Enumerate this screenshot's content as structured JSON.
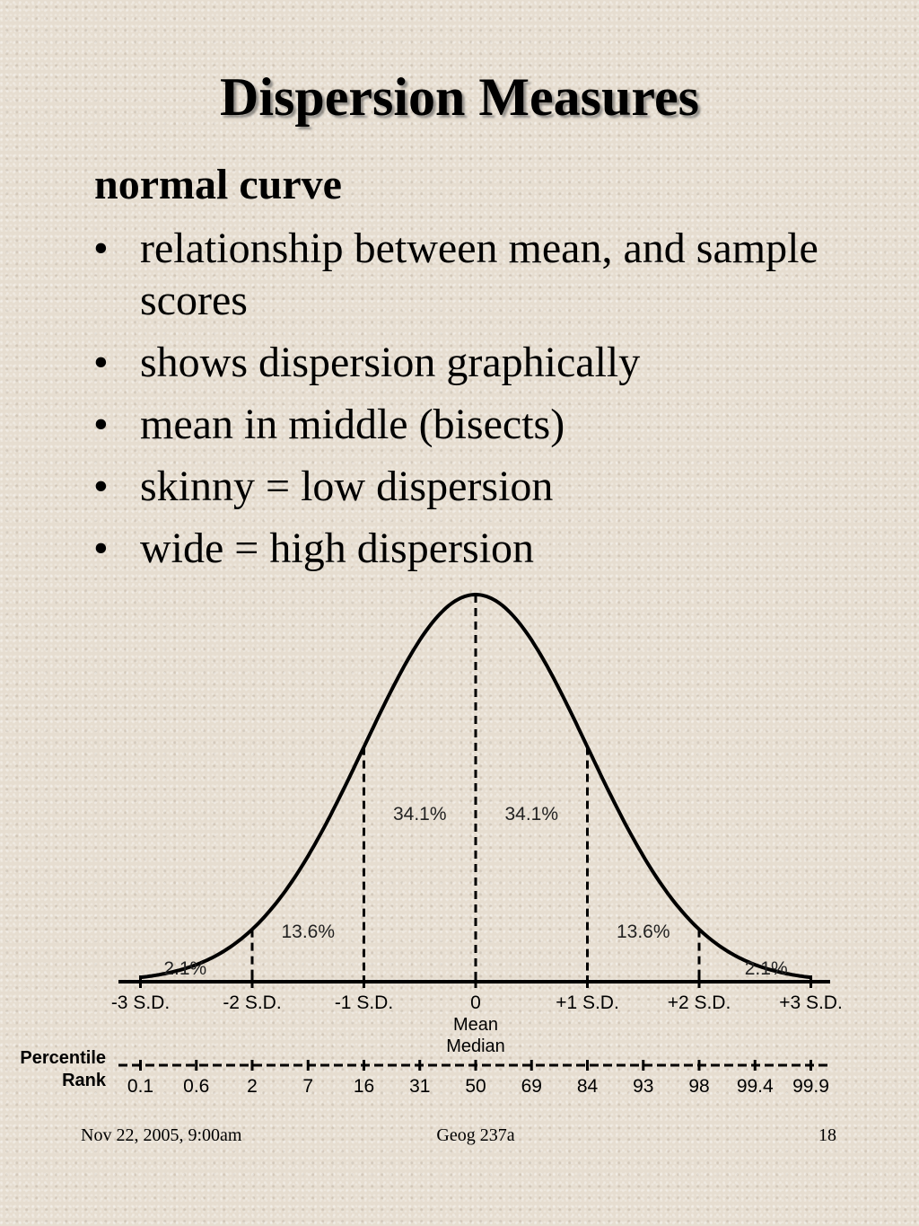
{
  "slide": {
    "title": "Dispersion Measures",
    "subheading": "normal curve",
    "bullet_glyph": "•",
    "bullets": [
      "relationship between mean, and sample scores",
      "shows dispersion graphically",
      "mean in middle (bisects)",
      "skinny = low dispersion",
      "wide = high dispersion"
    ]
  },
  "footer": {
    "date": "Nov 22, 2005, 9:00am",
    "course": "Geog 237a",
    "page": "18"
  },
  "chart_data": {
    "type": "line",
    "curve": "normal distribution",
    "x_ticks": [
      -3,
      -2,
      -1,
      0,
      1,
      2,
      3
    ],
    "x_tick_labels": [
      "-3 S.D.",
      "-2 S.D.",
      "-1 S.D.",
      "0",
      "+1 S.D.",
      "+2 S.D.",
      "+3 S.D."
    ],
    "center_labels": [
      "Mean",
      "Median"
    ],
    "regions": [
      {
        "from": -3,
        "to": -2,
        "label": "2.1%"
      },
      {
        "from": -2,
        "to": -1,
        "label": "13.6%"
      },
      {
        "from": -1,
        "to": 0,
        "label": "34.1%"
      },
      {
        "from": 0,
        "to": 1,
        "label": "34.1%"
      },
      {
        "from": 1,
        "to": 2,
        "label": "13.6%"
      },
      {
        "from": 2,
        "to": 3,
        "label": "2.1%"
      }
    ],
    "percentile_axis": {
      "label_lines": [
        "Percentile",
        "Rank"
      ],
      "ticks": [
        {
          "sd": -3,
          "label": "0.1"
        },
        {
          "sd": -2.5,
          "label": "0.6"
        },
        {
          "sd": -2,
          "label": "2"
        },
        {
          "sd": -1.5,
          "label": "7"
        },
        {
          "sd": -1,
          "label": "16"
        },
        {
          "sd": -0.5,
          "label": "31"
        },
        {
          "sd": 0,
          "label": "50"
        },
        {
          "sd": 0.5,
          "label": "69"
        },
        {
          "sd": 1,
          "label": "84"
        },
        {
          "sd": 1.5,
          "label": "93"
        },
        {
          "sd": 2,
          "label": "98"
        },
        {
          "sd": 2.5,
          "label": "99.4"
        },
        {
          "sd": 3,
          "label": "99.9"
        }
      ]
    }
  }
}
